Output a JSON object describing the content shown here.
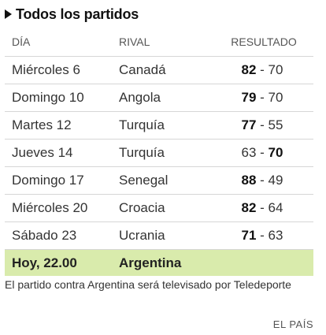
{
  "header": {
    "title": "Todos los partidos",
    "icon": "triangle-bullet"
  },
  "table": {
    "columns": [
      "DÍA",
      "RIVAL",
      "RESULTADO"
    ],
    "rows": [
      {
        "day": "Miércoles 6",
        "rival": "Canadá",
        "score_a": "82",
        "score_b": "70",
        "winner": "a"
      },
      {
        "day": "Domingo 10",
        "rival": "Angola",
        "score_a": "79",
        "score_b": "70",
        "winner": "a"
      },
      {
        "day": "Martes 12",
        "rival": "Turquía",
        "score_a": "77",
        "score_b": "55",
        "winner": "a"
      },
      {
        "day": "Jueves 14",
        "rival": "Turquía",
        "score_a": "63",
        "score_b": "70",
        "winner": "b"
      },
      {
        "day": "Domingo 17",
        "rival": "Senegal",
        "score_a": "88",
        "score_b": "49",
        "winner": "a"
      },
      {
        "day": "Miércoles 20",
        "rival": "Croacia",
        "score_a": "82",
        "score_b": "64",
        "winner": "a"
      },
      {
        "day": "Sábado 23",
        "rival": "Ucrania",
        "score_a": "71",
        "score_b": "63",
        "winner": "a"
      }
    ],
    "next": {
      "day": "Hoy, 22.00",
      "rival": "Argentina"
    }
  },
  "note": "El partido contra Argentina será televisado por Teledeporte",
  "source": "EL PAÍS",
  "colors": {
    "highlight": "#d9ebac",
    "divider": "#d6d6d6"
  }
}
